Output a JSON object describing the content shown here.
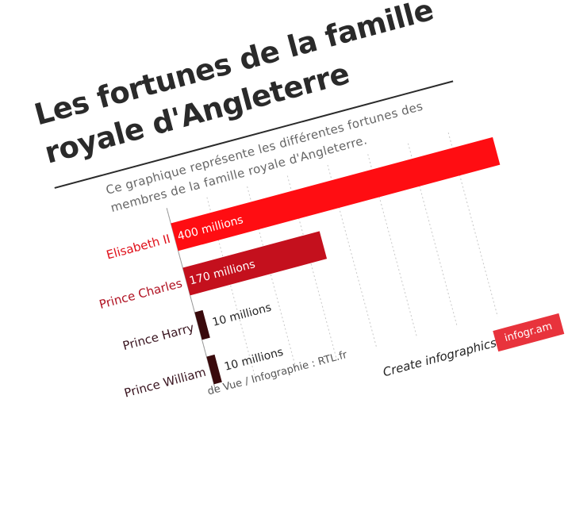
{
  "title": "Les fortunes de la famille royale d'Angleterre",
  "subtitle": "Ce graphique représente les différentes fortunes des membres de la famille royale d'Angleterre.",
  "source": "de Vue / Infographie : RTL.fr",
  "footer": {
    "create": "Create infographics",
    "logo": "infogr.am"
  },
  "colors": {
    "elisabeth": "#ff0d12",
    "charles": "#c4101d",
    "harry": "#3a0a0c",
    "william": "#3a0a0c"
  },
  "chart_data": {
    "type": "bar",
    "orientation": "horizontal",
    "categories": [
      "Elisabeth II",
      "Prince Charles",
      "Prince Harry",
      "Prince William"
    ],
    "values": [
      400,
      170,
      10,
      10
    ],
    "data_labels": [
      "400 millions",
      "170 millions",
      "10 millions",
      "10 millions"
    ],
    "label_colors": [
      "#e0101a",
      "#b01020",
      "#3a1520",
      "#3a1520"
    ],
    "xlim": [
      0,
      350
    ],
    "xticks": [
      0,
      50,
      100,
      150,
      200,
      250,
      300,
      350
    ],
    "grid": true
  }
}
